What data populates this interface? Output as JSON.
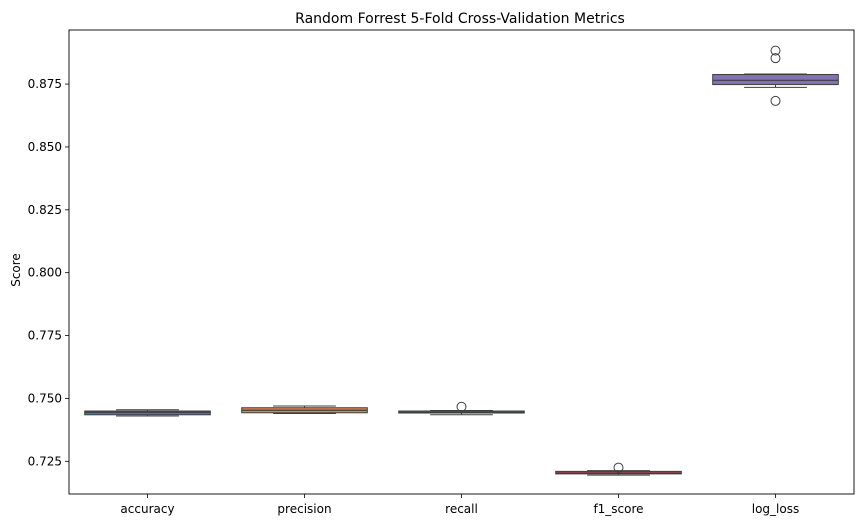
{
  "chart_data": {
    "type": "box",
    "title": "Random Forrest 5-Fold Cross-Validation Metrics",
    "xlabel": "",
    "ylabel": "Score",
    "ylim": [
      0.712,
      0.8965
    ],
    "yticks": [
      "0.725",
      "0.750",
      "0.775",
      "0.800",
      "0.825",
      "0.850",
      "0.875"
    ],
    "grid": false,
    "categories": [
      "accuracy",
      "precision",
      "recall",
      "f1_score",
      "log_loss"
    ],
    "boxes": [
      {
        "category": "accuracy",
        "color": "#4c72b0",
        "whisker_low": 0.743,
        "q1": 0.7435,
        "median": 0.7445,
        "q3": 0.745,
        "whisker_high": 0.7455,
        "outliers": []
      },
      {
        "category": "precision",
        "color": "#dd8452",
        "whisker_low": 0.744,
        "q1": 0.7443,
        "median": 0.7453,
        "q3": 0.7463,
        "whisker_high": 0.747,
        "outliers": []
      },
      {
        "category": "recall",
        "color": "#55a868",
        "whisker_low": 0.7435,
        "q1": 0.7442,
        "median": 0.7445,
        "q3": 0.745,
        "whisker_high": 0.7452,
        "outliers": [
          0.7467
        ]
      },
      {
        "category": "f1_score",
        "color": "#c44e52",
        "whisker_low": 0.7195,
        "q1": 0.72,
        "median": 0.7203,
        "q3": 0.721,
        "whisker_high": 0.7213,
        "outliers": [
          0.7225
        ]
      },
      {
        "category": "log_loss",
        "color": "#8172b3",
        "whisker_low": 0.8737,
        "q1": 0.8748,
        "median": 0.8765,
        "q3": 0.8788,
        "whisker_high": 0.879,
        "outliers": [
          0.8683,
          0.8853,
          0.8883
        ]
      }
    ]
  }
}
